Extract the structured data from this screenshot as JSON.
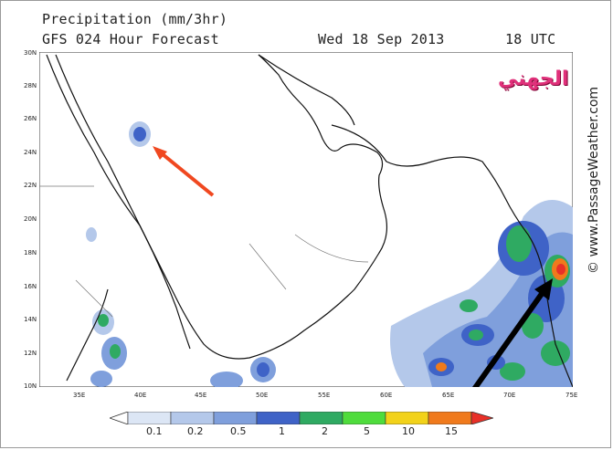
{
  "header": {
    "title": "Precipitation (mm/3hr)",
    "subtitle": "GFS 024 Hour Forecast",
    "date": "Wed 18 Sep 2013",
    "time": "18 UTC"
  },
  "axes": {
    "y_labels": [
      "30N",
      "28N",
      "26N",
      "24N",
      "22N",
      "20N",
      "18N",
      "16N",
      "14N",
      "12N",
      "10N"
    ],
    "x_labels": [
      "35E",
      "40E",
      "45E",
      "50E",
      "55E",
      "60E",
      "65E",
      "70E",
      "75E"
    ]
  },
  "legend": {
    "labels": [
      "0.1",
      "0.2",
      "0.5",
      "1",
      "2",
      "5",
      "10",
      "15"
    ],
    "colors": [
      "#dce6f5",
      "#b4c8ea",
      "#7f9fdc",
      "#3f63c7",
      "#2faa62",
      "#4fdc3c",
      "#f2d21a",
      "#f07a1c",
      "#e83028"
    ]
  },
  "credit": "© www.PassageWeather.com",
  "overlay_text": "الجهني",
  "annotations": {
    "red_arrow_color": "#f04820",
    "black_arrow_color": "#000000"
  }
}
